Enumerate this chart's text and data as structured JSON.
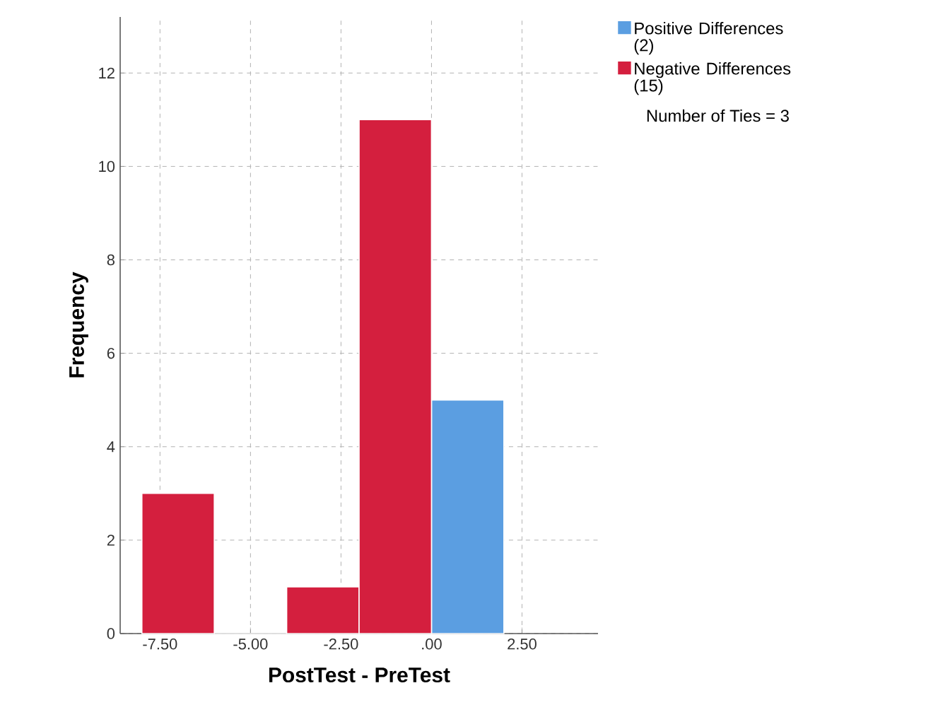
{
  "chart_data": {
    "type": "histogram",
    "xlabel": "PostTest - PreTest",
    "ylabel": "Frequency",
    "bins": [
      -8,
      -6,
      -4,
      -2,
      0,
      2
    ],
    "series": [
      {
        "name": "Positive Differences (2)",
        "color": "#5b9ee1",
        "values": [
          null,
          null,
          null,
          null,
          5
        ]
      },
      {
        "name": "Negative Differences (15)",
        "color": "#d41f3e",
        "values": [
          3,
          0,
          1,
          11,
          null
        ]
      }
    ],
    "xlim": [
      -8.6,
      4.6
    ],
    "ylim": [
      0,
      13.2
    ],
    "xticks": [
      {
        "value": -7.5,
        "label": "-7.50"
      },
      {
        "value": -5,
        "label": "-5.00"
      },
      {
        "value": -2.5,
        "label": "-2.50"
      },
      {
        "value": 0,
        "label": ".00"
      },
      {
        "value": 2.5,
        "label": "2.50"
      }
    ],
    "yticks": [
      0,
      2,
      4,
      6,
      8,
      10,
      12
    ],
    "grid": true,
    "legend": "right",
    "annotations": [
      "Number of Ties = 3"
    ]
  }
}
